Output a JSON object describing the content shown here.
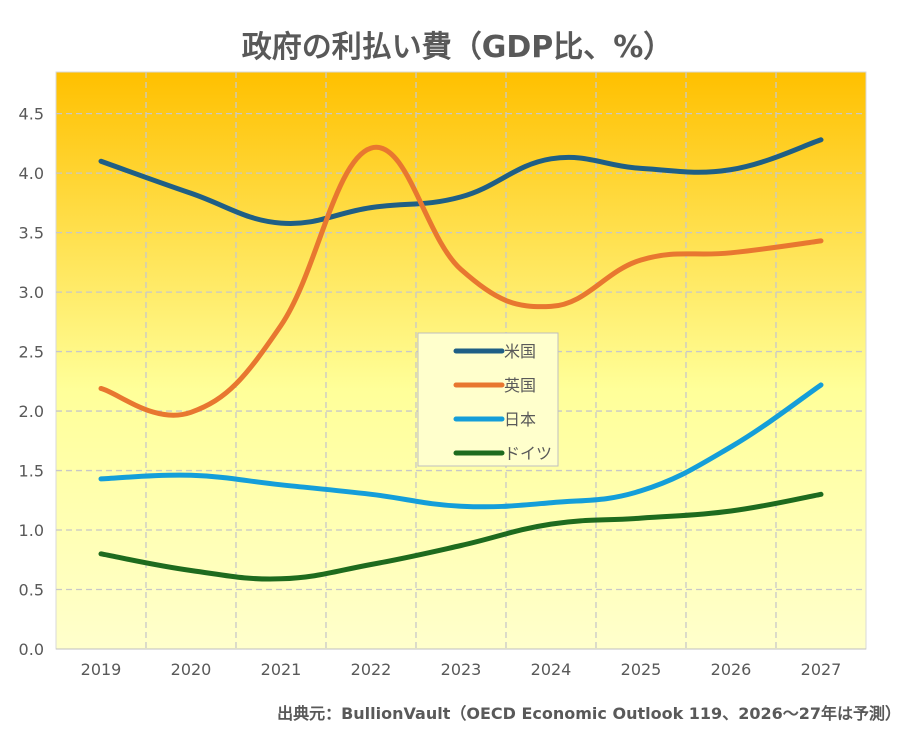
{
  "chart_data": {
    "type": "line",
    "title": "政府の利払い費（GDP比、%）",
    "source": "出典元：BullionVault（OECD Economic Outlook 119、2026～27年は予測）",
    "x": [
      "2019",
      "2020",
      "2021",
      "2022",
      "2023",
      "2024",
      "2025",
      "2026",
      "2027"
    ],
    "ylim": [
      0,
      4.85
    ],
    "yticks": [
      "0.0",
      "0.5",
      "1.0",
      "1.5",
      "2.0",
      "2.5",
      "3.0",
      "3.5",
      "4.0",
      "4.5"
    ],
    "grid": true,
    "legend_position": "center",
    "background_gradient": [
      "#FFC000",
      "#FFFFCC"
    ],
    "series": [
      {
        "name": "米国",
        "color": "#1F5F85",
        "values": [
          4.1,
          3.83,
          3.58,
          3.71,
          3.8,
          4.12,
          4.04,
          4.03,
          4.28
        ]
      },
      {
        "name": "英国",
        "color": "#E87730",
        "values": [
          2.19,
          1.99,
          2.72,
          4.21,
          3.19,
          2.88,
          3.27,
          3.33,
          3.43
        ]
      },
      {
        "name": "日本",
        "color": "#149ED9",
        "values": [
          1.43,
          1.46,
          1.38,
          1.3,
          1.2,
          1.23,
          1.33,
          1.7,
          2.22
        ]
      },
      {
        "name": "ドイツ",
        "color": "#1E6B1E",
        "values": [
          0.8,
          0.66,
          0.59,
          0.71,
          0.87,
          1.05,
          1.1,
          1.16,
          1.3
        ]
      }
    ]
  }
}
